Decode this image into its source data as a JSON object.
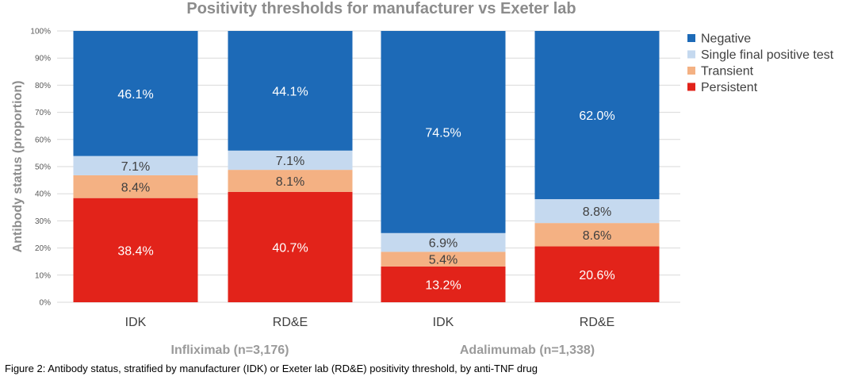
{
  "chart_data": {
    "type": "bar",
    "stacked": true,
    "title": "Positivity thresholds for manufacturer vs Exeter lab",
    "ylabel": "Antibody status (proportion)",
    "xlabel": "",
    "ylim": [
      0,
      100
    ],
    "y_ticks": [
      "0%",
      "10%",
      "20%",
      "30%",
      "40%",
      "50%",
      "60%",
      "70%",
      "80%",
      "90%",
      "100%"
    ],
    "grid": true,
    "legend_position": "right",
    "categories": [
      "IDK",
      "RD&E",
      "IDK",
      "RD&E"
    ],
    "groups": [
      {
        "label": "Infliximab (n=3,176)",
        "categories": [
          0,
          1
        ]
      },
      {
        "label": "Adalimumab (n=1,338)",
        "categories": [
          2,
          3
        ]
      }
    ],
    "series": [
      {
        "name": "Persistent",
        "color": "#e2231a",
        "values": [
          38.4,
          40.7,
          13.2,
          20.6
        ],
        "labels": [
          "38.4%",
          "40.7%",
          "13.2%",
          "20.6%"
        ],
        "label_color": "#ffffff"
      },
      {
        "name": "Transient",
        "color": "#f4b183",
        "values": [
          8.4,
          8.1,
          5.4,
          8.6
        ],
        "labels": [
          "8.4%",
          "8.1%",
          "5.4%",
          "8.6%"
        ],
        "label_color": "#404040"
      },
      {
        "name": "Single final positive test",
        "color": "#c5d9ef",
        "values": [
          7.1,
          7.1,
          6.9,
          8.8
        ],
        "labels": [
          "7.1%",
          "7.1%",
          "6.9%",
          "8.8%"
        ],
        "label_color": "#404040"
      },
      {
        "name": "Negative",
        "color": "#1d6ab7",
        "values": [
          46.1,
          44.1,
          74.5,
          62.0
        ],
        "labels": [
          "46.1%",
          "44.1%",
          "74.5%",
          "62.0%"
        ],
        "label_color": "#ffffff"
      }
    ],
    "legend_order": [
      "Negative",
      "Single final positive test",
      "Transient",
      "Persistent"
    ]
  },
  "caption": "Figure 2: Antibody status, stratified by manufacturer (IDK) or Exeter lab (RD&E) positivity threshold, by anti-TNF drug",
  "colors": {
    "title": "#8c8c8c",
    "axis_text": "#595959",
    "group_label": "#9a9a9a",
    "grid": "#d9d9d9"
  }
}
